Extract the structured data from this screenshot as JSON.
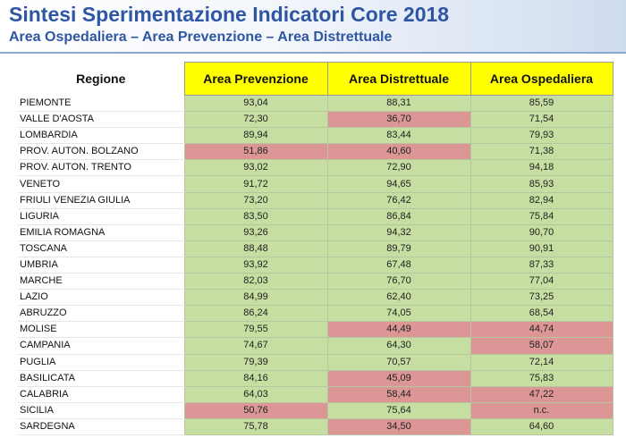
{
  "header": {
    "title": "Sintesi Sperimentazione Indicatori Core 2018",
    "subtitle": "Area Ospedaliera – Area Prevenzione – Area Distrettuale"
  },
  "table": {
    "columns": [
      "Regione",
      "Area Prevenzione",
      "Area Distrettuale",
      "Area Ospedaliera"
    ],
    "colors": {
      "green": "#c6dea1",
      "red": "#dc9696",
      "header_yellow": "#ffff00"
    },
    "rows": [
      {
        "regione": "PIEMONTE",
        "prevenzione": "93,04",
        "distrettuale": "88,31",
        "ospedaliera": "85,59",
        "status": [
          "green",
          "green",
          "green"
        ]
      },
      {
        "regione": "VALLE D'AOSTA",
        "prevenzione": "72,30",
        "distrettuale": "36,70",
        "ospedaliera": "71,54",
        "status": [
          "green",
          "red",
          "green"
        ]
      },
      {
        "regione": "LOMBARDIA",
        "prevenzione": "89,94",
        "distrettuale": "83,44",
        "ospedaliera": "79,93",
        "status": [
          "green",
          "green",
          "green"
        ]
      },
      {
        "regione": "PROV. AUTON. BOLZANO",
        "prevenzione": "51,86",
        "distrettuale": "40,60",
        "ospedaliera": "71,38",
        "status": [
          "red",
          "red",
          "green"
        ]
      },
      {
        "regione": "PROV. AUTON. TRENTO",
        "prevenzione": "93,02",
        "distrettuale": "72,90",
        "ospedaliera": "94,18",
        "status": [
          "green",
          "green",
          "green"
        ]
      },
      {
        "regione": "VENETO",
        "prevenzione": "91,72",
        "distrettuale": "94,65",
        "ospedaliera": "85,93",
        "status": [
          "green",
          "green",
          "green"
        ]
      },
      {
        "regione": "FRIULI VENEZIA GIULIA",
        "prevenzione": "73,20",
        "distrettuale": "76,42",
        "ospedaliera": "82,94",
        "status": [
          "green",
          "green",
          "green"
        ]
      },
      {
        "regione": "LIGURIA",
        "prevenzione": "83,50",
        "distrettuale": "86,84",
        "ospedaliera": "75,84",
        "status": [
          "green",
          "green",
          "green"
        ]
      },
      {
        "regione": "EMILIA ROMAGNA",
        "prevenzione": "93,26",
        "distrettuale": "94,32",
        "ospedaliera": "90,70",
        "status": [
          "green",
          "green",
          "green"
        ]
      },
      {
        "regione": "TOSCANA",
        "prevenzione": "88,48",
        "distrettuale": "89,79",
        "ospedaliera": "90,91",
        "status": [
          "green",
          "green",
          "green"
        ]
      },
      {
        "regione": "UMBRIA",
        "prevenzione": "93,92",
        "distrettuale": "67,48",
        "ospedaliera": "87,33",
        "status": [
          "green",
          "green",
          "green"
        ]
      },
      {
        "regione": "MARCHE",
        "prevenzione": "82,03",
        "distrettuale": "76,70",
        "ospedaliera": "77,04",
        "status": [
          "green",
          "green",
          "green"
        ]
      },
      {
        "regione": "LAZIO",
        "prevenzione": "84,99",
        "distrettuale": "62,40",
        "ospedaliera": "73,25",
        "status": [
          "green",
          "green",
          "green"
        ]
      },
      {
        "regione": "ABRUZZO",
        "prevenzione": "86,24",
        "distrettuale": "74,05",
        "ospedaliera": "68,54",
        "status": [
          "green",
          "green",
          "green"
        ]
      },
      {
        "regione": "MOLISE",
        "prevenzione": "79,55",
        "distrettuale": "44,49",
        "ospedaliera": "44,74",
        "status": [
          "green",
          "red",
          "red"
        ]
      },
      {
        "regione": "CAMPANIA",
        "prevenzione": "74,67",
        "distrettuale": "64,30",
        "ospedaliera": "58,07",
        "status": [
          "green",
          "green",
          "red"
        ]
      },
      {
        "regione": "PUGLIA",
        "prevenzione": "79,39",
        "distrettuale": "70,57",
        "ospedaliera": "72,14",
        "status": [
          "green",
          "green",
          "green"
        ]
      },
      {
        "regione": "BASILICATA",
        "prevenzione": "84,16",
        "distrettuale": "45,09",
        "ospedaliera": "75,83",
        "status": [
          "green",
          "red",
          "green"
        ]
      },
      {
        "regione": "CALABRIA",
        "prevenzione": "64,03",
        "distrettuale": "58,44",
        "ospedaliera": "47,22",
        "status": [
          "green",
          "red",
          "red"
        ]
      },
      {
        "regione": "SICILIA",
        "prevenzione": "50,76",
        "distrettuale": "75,64",
        "ospedaliera": "n.c.",
        "status": [
          "red",
          "green",
          "red"
        ]
      },
      {
        "regione": "SARDEGNA",
        "prevenzione": "75,78",
        "distrettuale": "34,50",
        "ospedaliera": "64,60",
        "status": [
          "green",
          "red",
          "green"
        ]
      }
    ]
  }
}
